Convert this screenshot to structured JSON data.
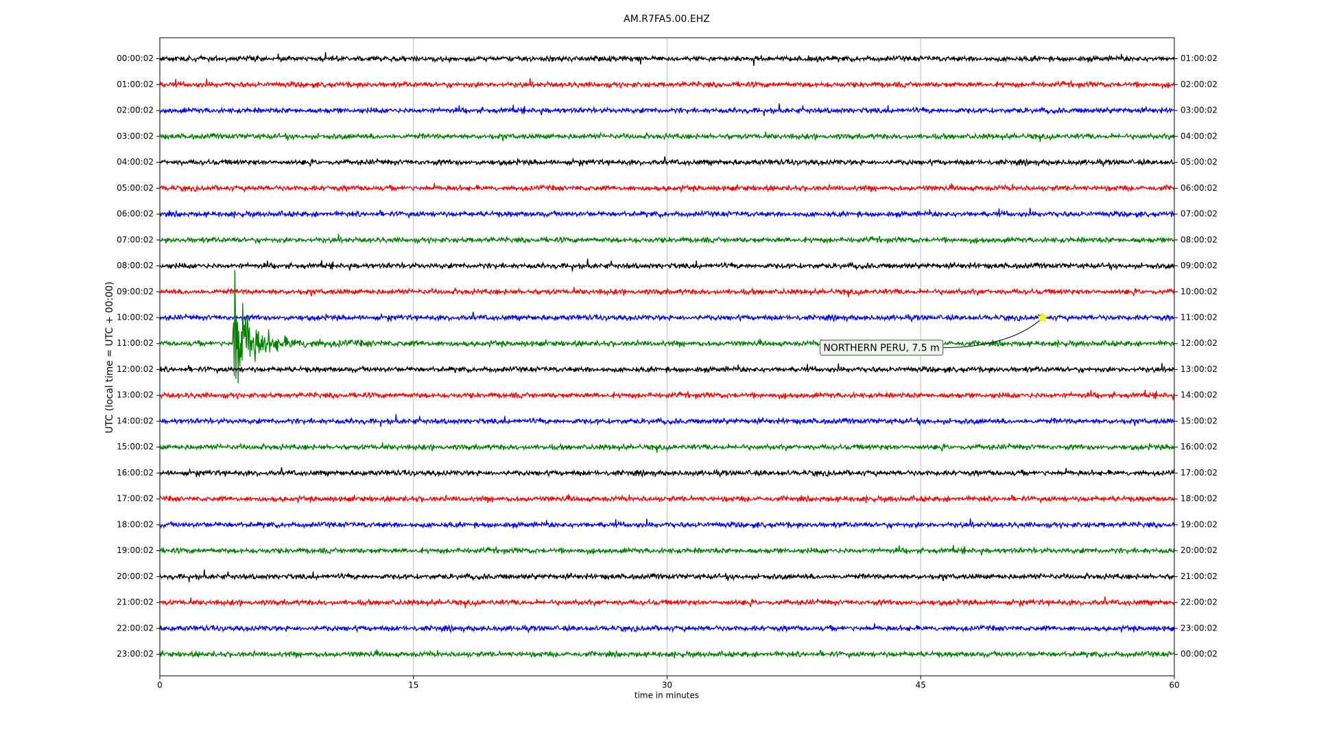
{
  "chart_data": {
    "type": "dayplot",
    "title": "AM.R7FA5.00.EHZ",
    "x_label": "time in minutes",
    "y_label": "UTC (local time = UTC + 00:00)",
    "xlim": [
      0,
      60
    ],
    "xticks": [
      0,
      15,
      30,
      45,
      60
    ],
    "grid": true,
    "colors": [
      "#000000",
      "#ff0000",
      "#0000ff",
      "#008000"
    ],
    "rows": [
      "00:00:02",
      "01:00:02",
      "02:00:02",
      "03:00:02",
      "04:00:02",
      "05:00:02",
      "06:00:02",
      "07:00:02",
      "08:00:02",
      "09:00:02",
      "10:00:02",
      "11:00:02",
      "12:00:02",
      "13:00:02",
      "14:00:02",
      "15:00:02",
      "16:00:02",
      "17:00:02",
      "18:00:02",
      "19:00:02",
      "20:00:02",
      "21:00:02",
      "22:00:02",
      "23:00:02"
    ],
    "right_labels": [
      "01:00:02",
      "02:00:02",
      "03:00:02",
      "04:00:02",
      "05:00:02",
      "06:00:02",
      "07:00:02",
      "08:00:02",
      "09:00:02",
      "10:00:02",
      "11:00:02",
      "12:00:02",
      "13:00:02",
      "14:00:02",
      "15:00:02",
      "16:00:02",
      "17:00:02",
      "18:00:02",
      "19:00:02",
      "20:00:02",
      "21:00:02",
      "22:00:02",
      "23:00:02",
      "00:00:02"
    ],
    "event": {
      "label": "NORTHERN PERU, 7.5 m",
      "x": 52.2,
      "row": 10
    }
  }
}
